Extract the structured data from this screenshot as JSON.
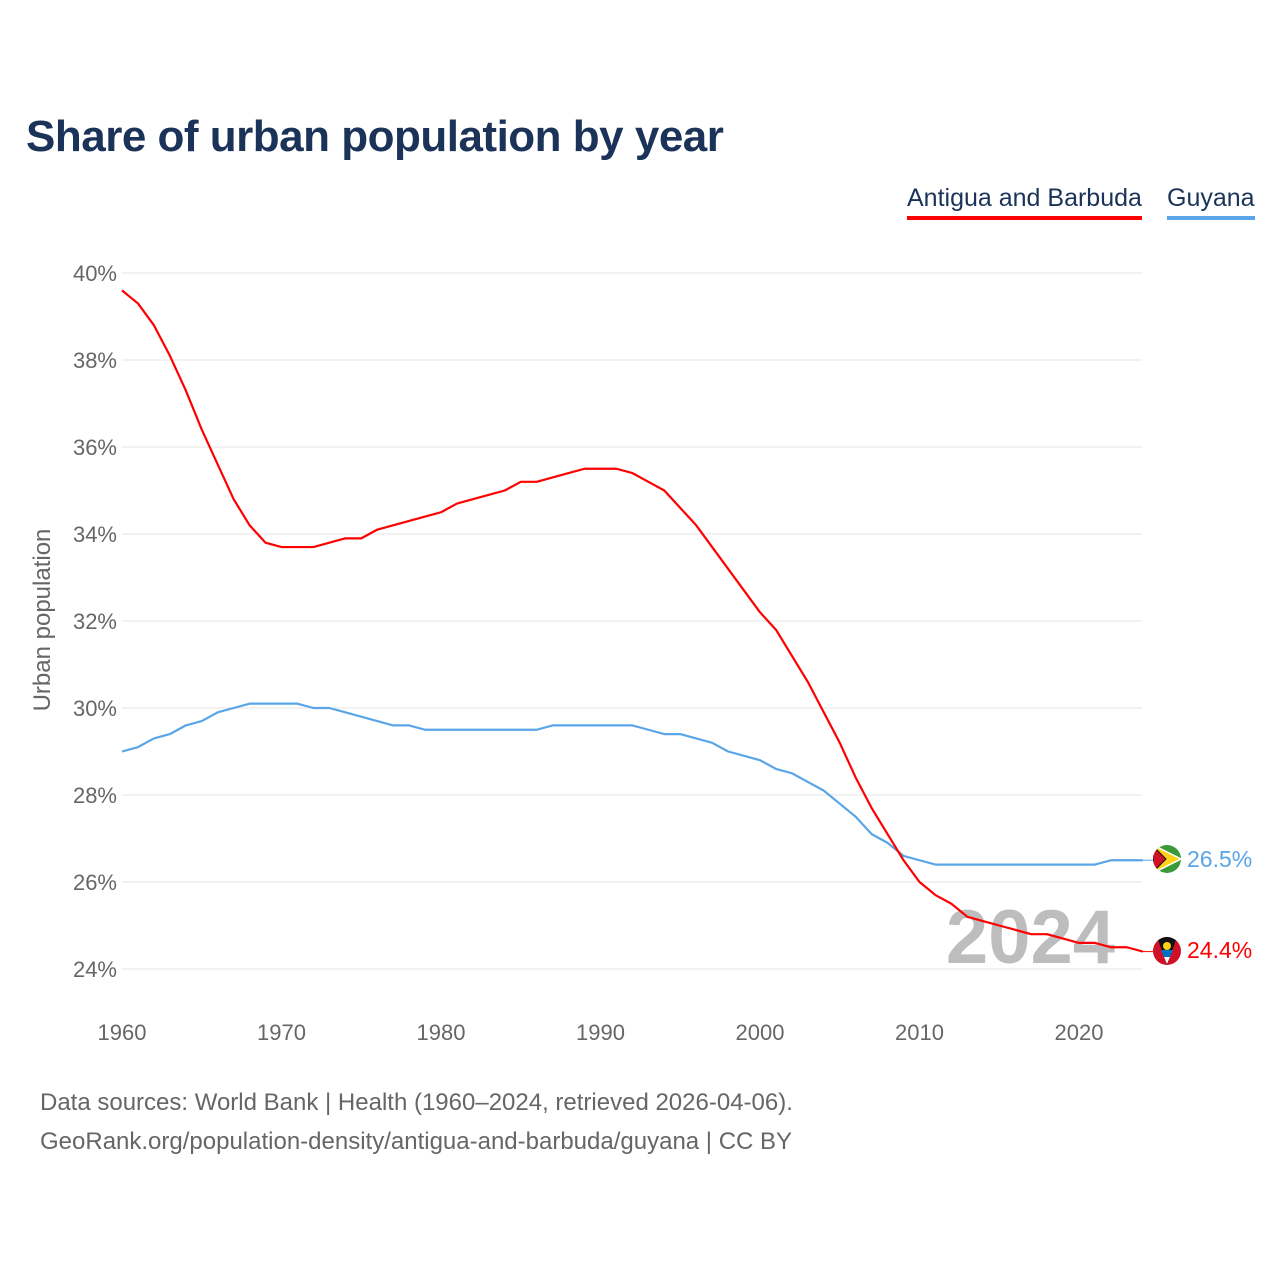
{
  "title": "Share of urban population by year",
  "legend": [
    {
      "label": "Antigua and Barbuda",
      "color": "#ff0000"
    },
    {
      "label": "Guyana",
      "color": "#5aa5e8"
    }
  ],
  "watermark_year": "2024",
  "end_labels": {
    "antigua": "24.4%",
    "guyana": "26.5%"
  },
  "footer": {
    "line1": "Data sources: World Bank | Health (1960–2024, retrieved 2026-04-06).",
    "line2": "GeoRank.org/population-density/antigua-and-barbuda/guyana | CC BY"
  },
  "chart_data": {
    "type": "line",
    "title": "Share of urban population by year",
    "xlabel": "",
    "ylabel": "Urban population",
    "xlim": [
      1960,
      2024
    ],
    "ylim": [
      24,
      40
    ],
    "x_ticks": [
      "1960",
      "1970",
      "1980",
      "1990",
      "2000",
      "2010",
      "2020"
    ],
    "y_ticks": [
      "24%",
      "26%",
      "28%",
      "30%",
      "32%",
      "34%",
      "36%",
      "38%",
      "40%"
    ],
    "grid": true,
    "legend_position": "top-right",
    "x_start": 1960,
    "series": [
      {
        "name": "Antigua and Barbuda",
        "color": "#ff0000",
        "values": [
          39.6,
          39.3,
          38.8,
          38.1,
          37.3,
          36.4,
          35.6,
          34.8,
          34.2,
          33.8,
          33.7,
          33.7,
          33.7,
          33.8,
          33.9,
          33.9,
          34.1,
          34.2,
          34.3,
          34.4,
          34.5,
          34.7,
          34.8,
          34.9,
          35.0,
          35.2,
          35.2,
          35.3,
          35.4,
          35.5,
          35.5,
          35.5,
          35.4,
          35.2,
          35.0,
          34.6,
          34.2,
          33.7,
          33.2,
          32.7,
          32.2,
          31.8,
          31.2,
          30.6,
          29.9,
          29.2,
          28.4,
          27.7,
          27.1,
          26.5,
          26.0,
          25.7,
          25.5,
          25.2,
          25.1,
          25.0,
          24.9,
          24.8,
          24.8,
          24.7,
          24.6,
          24.6,
          24.5,
          24.5,
          24.4
        ]
      },
      {
        "name": "Guyana",
        "color": "#5aa5e8",
        "values": [
          29.0,
          29.1,
          29.3,
          29.4,
          29.6,
          29.7,
          29.9,
          30.0,
          30.1,
          30.1,
          30.1,
          30.1,
          30.0,
          30.0,
          29.9,
          29.8,
          29.7,
          29.6,
          29.6,
          29.5,
          29.5,
          29.5,
          29.5,
          29.5,
          29.5,
          29.5,
          29.5,
          29.6,
          29.6,
          29.6,
          29.6,
          29.6,
          29.6,
          29.5,
          29.4,
          29.4,
          29.3,
          29.2,
          29.0,
          28.9,
          28.8,
          28.6,
          28.5,
          28.3,
          28.1,
          27.8,
          27.5,
          27.1,
          26.9,
          26.6,
          26.5,
          26.4,
          26.4,
          26.4,
          26.4,
          26.4,
          26.4,
          26.4,
          26.4,
          26.4,
          26.4,
          26.4,
          26.5,
          26.5,
          26.5
        ]
      }
    ]
  }
}
